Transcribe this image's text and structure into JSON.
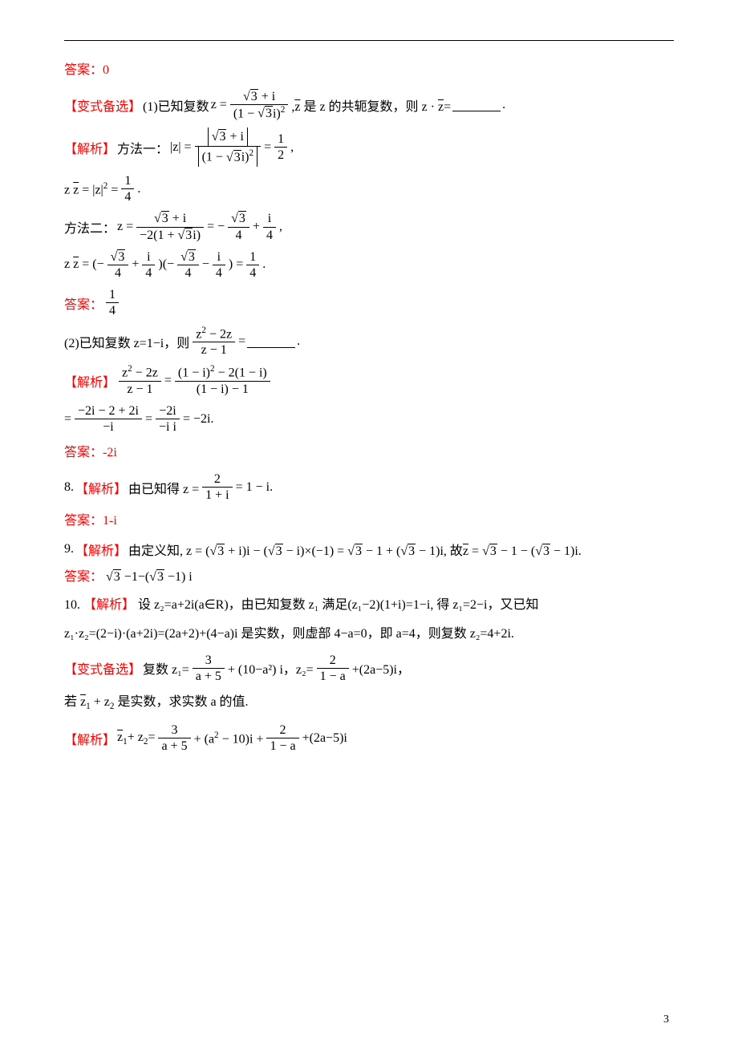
{
  "colors": {
    "text": "#000000",
    "accent": "#ff0000",
    "background": "#ffffff",
    "rule": "#000000"
  },
  "typography": {
    "body_fontsize_pt": 12,
    "font_family": "SimSun"
  },
  "page_number": "3",
  "lines": {
    "ans0": "答案：0",
    "var1_label": "【变式备选】",
    "var1_q": "(1)已知复数",
    "var1_formula_lhs": "z =",
    "var1_num": "√3 + i",
    "var1_den": "(1 − √3 i)²",
    "var1_tail1": "，z̄ 是 z 的共轭复数，则 z · z̄ =",
    "var1_tail2": ".",
    "jiexi_label": "【解析】",
    "m1_prefix": "方法一：",
    "m1_eq_lhs": "|z| =",
    "m1_eq_num": "|√3 + i|",
    "m1_eq_den": "|(1 − √3 i)²|",
    "m1_eq_rhs": "= 1/2,",
    "m1b_eq": "z z̄ = |z|² = 1/4.",
    "m2_prefix": "方法二：",
    "m2_eq_a": "z =",
    "m2_num_a": "√3 + i",
    "m2_den_a": "−2(1 + √3 i)",
    "m2_eq_b": "= −√3/4 + i/4,",
    "m2b_eq": "z z̄ = (−√3/4 + i/4)(−√3/4 − i/4) = 1/4.",
    "ans1_label": "答案：",
    "ans1_val": "1/4",
    "q2_prefix": "(2)已知复数 z=1−i，则",
    "q2_num": "z² − 2z",
    "q2_den": "z − 1",
    "q2_tail": "=",
    "jiexi2_eq_lhs": "z² − 2z",
    "jiexi2_eq_lden": "z − 1",
    "jiexi2_eq_rnum": "(1 − i)² − 2(1 − i)",
    "jiexi2_eq_rden": "(1 − i) − 1",
    "jiexi2b_eq": "= (−2i − 2 + 2i)/(−i) = (−2i)/(−i i) = −2i.",
    "ans2": "答案：-2i",
    "q8_prefix": "8.",
    "q8_body": "由已知得 z = 2/(1+i) = 1 − i.",
    "ans8": "答案：1-i",
    "q9_prefix": "9.",
    "q9_body": "由定义知, z = (√3 + i)i − (√3 − i)×(−1) = √3 − 1 + (√3 − 1)i, 故 z̄ = √3 − 1 − (√3 − 1)i.",
    "ans9_label": "答案：",
    "ans9_val": "√3 −1−(√3 −1) i",
    "q10_prefix": "10.",
    "q10_line1": "设 z₂=a+2i(a∈R)，由已知复数 z₁ 满足(z₁−2)(1+i)=1−i, 得 z₁=2−i，又已知",
    "q10_line2": "z₁·z₂=(2−i)·(a+2i)=(2a+2)+(4−a)i 是实数，则虚部 4−a=0，即 a=4，则复数 z₂=4+2i.",
    "var2_body_a": "复数 z₁=",
    "var2_frac1_num": "3",
    "var2_frac1_den": "a + 5",
    "var2_body_b": " + (10−a²) i，z₂=",
    "var2_frac2_num": "2",
    "var2_frac2_den": "1 − a",
    "var2_body_c": "+(2a−5)i，",
    "var2_line2": "若 z̄₁ + z₂ 是实数，求实数 a 的值.",
    "jiexi3_body": "z̄₁ + z₂ = 3/(a+5) + (a² − 10)i + 2/(1−a) + (2a−5)i"
  }
}
